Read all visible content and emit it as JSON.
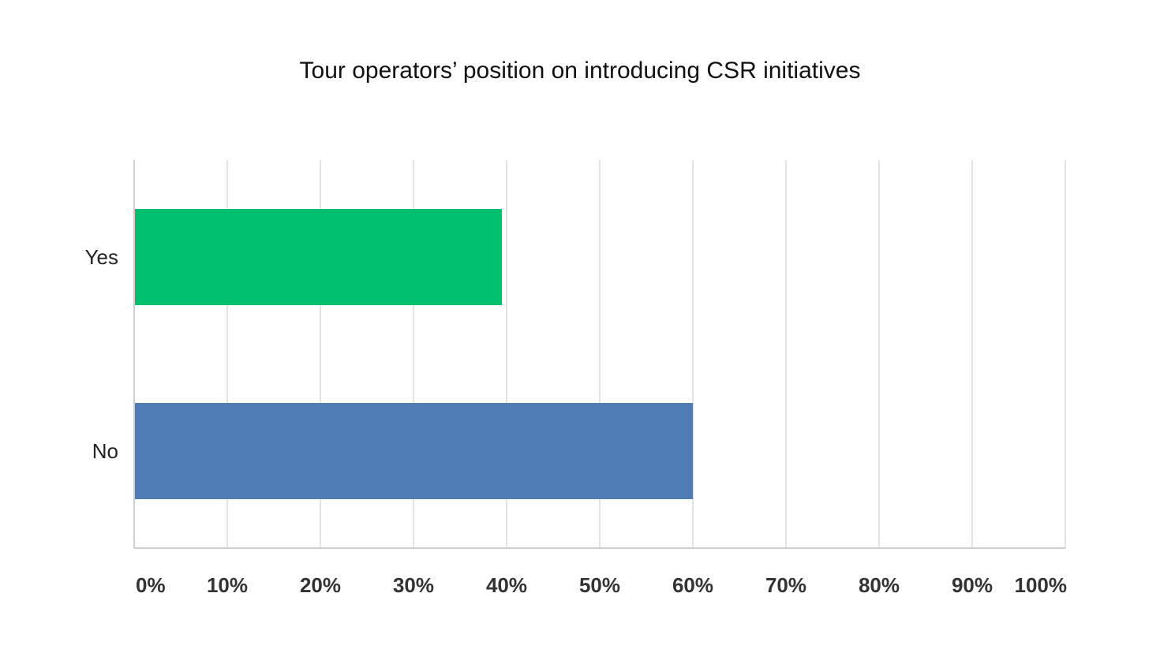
{
  "chart_data": {
    "type": "bar",
    "orientation": "horizontal",
    "title": "Tour operators’ position on introducing CSR initiatives",
    "xlabel": "",
    "ylabel": "",
    "categories": [
      "Yes",
      "No"
    ],
    "values": [
      39.5,
      60
    ],
    "bar_colors": [
      "#00BF6F",
      "#507CB6"
    ],
    "xlim": [
      0,
      100
    ],
    "x_ticks": [
      "0%",
      "10%",
      "20%",
      "30%",
      "40%",
      "50%",
      "60%",
      "70%",
      "80%",
      "90%",
      "100%"
    ],
    "grid": true,
    "legend": "none"
  }
}
